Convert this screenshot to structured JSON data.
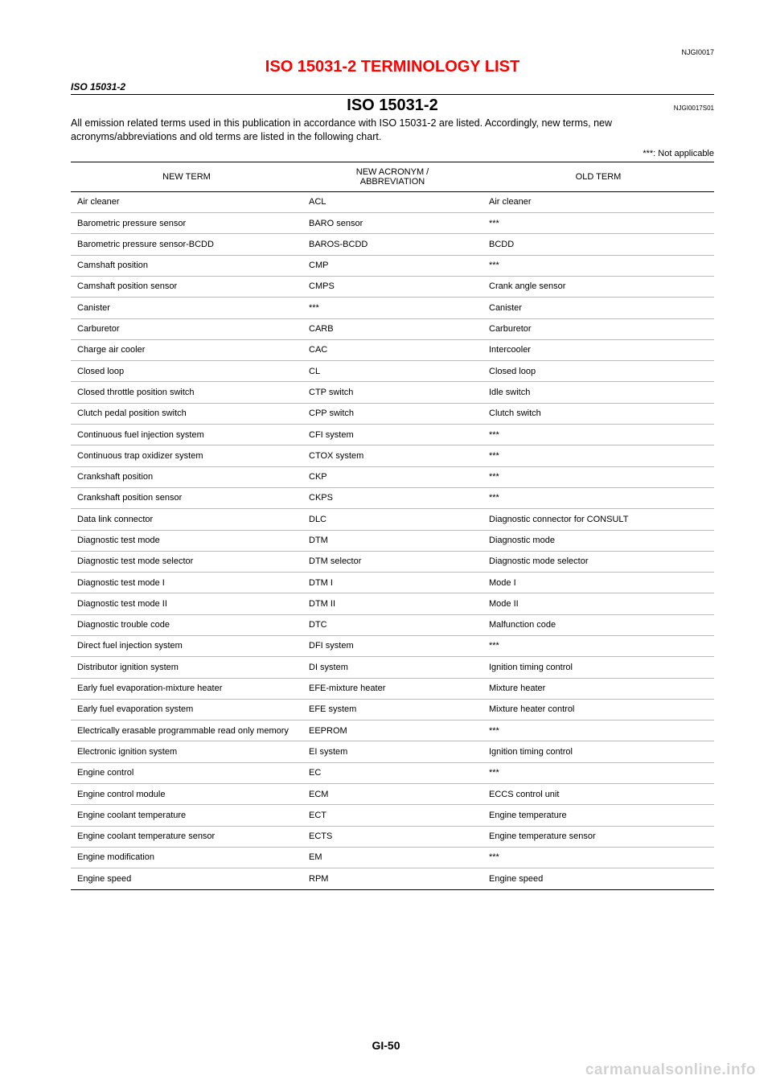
{
  "doc_id": "NJGI0017",
  "title": "ISO 15031-2 TERMINOLOGY LIST",
  "section_label": "ISO 15031-2",
  "sub_title": "ISO 15031-2",
  "sub_ref": "NJGI0017S01",
  "intro": "All emission related terms used in this publication in accordance with ISO 15031-2 are listed. Accordingly, new terms, new acronyms/abbreviations and old terms are listed in the following chart.",
  "note": "***: Not applicable",
  "headers": {
    "c1": "NEW TERM",
    "c2": "NEW ACRONYM /\nABBREVIATION",
    "c3": "OLD TERM"
  },
  "rows": [
    [
      "Air cleaner",
      "ACL",
      "Air cleaner"
    ],
    [
      "Barometric pressure sensor",
      "BARO sensor",
      "***"
    ],
    [
      "Barometric pressure sensor-BCDD",
      "BAROS-BCDD",
      "BCDD"
    ],
    [
      "Camshaft position",
      "CMP",
      "***"
    ],
    [
      "Camshaft position sensor",
      "CMPS",
      "Crank angle sensor"
    ],
    [
      "Canister",
      "***",
      "Canister"
    ],
    [
      "Carburetor",
      "CARB",
      "Carburetor"
    ],
    [
      "Charge air cooler",
      "CAC",
      "Intercooler"
    ],
    [
      "Closed loop",
      "CL",
      "Closed loop"
    ],
    [
      "Closed throttle position switch",
      "CTP switch",
      "Idle switch"
    ],
    [
      "Clutch pedal position switch",
      "CPP switch",
      "Clutch switch"
    ],
    [
      "Continuous fuel injection system",
      "CFI system",
      "***"
    ],
    [
      "Continuous trap oxidizer system",
      "CTOX system",
      "***"
    ],
    [
      "Crankshaft position",
      "CKP",
      "***"
    ],
    [
      "Crankshaft position sensor",
      "CKPS",
      "***"
    ],
    [
      "Data link connector",
      "DLC",
      "Diagnostic connector for CONSULT"
    ],
    [
      "Diagnostic test mode",
      "DTM",
      "Diagnostic mode"
    ],
    [
      "Diagnostic test mode selector",
      "DTM selector",
      "Diagnostic mode selector"
    ],
    [
      "Diagnostic test mode I",
      "DTM I",
      "Mode I"
    ],
    [
      "Diagnostic test mode II",
      "DTM II",
      "Mode II"
    ],
    [
      "Diagnostic trouble code",
      "DTC",
      "Malfunction code"
    ],
    [
      "Direct fuel injection system",
      "DFI system",
      "***"
    ],
    [
      "Distributor ignition system",
      "DI system",
      "Ignition timing control"
    ],
    [
      "Early fuel evaporation-mixture heater",
      "EFE-mixture heater",
      "Mixture heater"
    ],
    [
      "Early fuel evaporation system",
      "EFE system",
      "Mixture heater control"
    ],
    [
      "Electrically erasable programmable read only memory",
      "EEPROM",
      "***"
    ],
    [
      "Electronic ignition system",
      "EI system",
      "Ignition timing control"
    ],
    [
      "Engine control",
      "EC",
      "***"
    ],
    [
      "Engine control module",
      "ECM",
      "ECCS control unit"
    ],
    [
      "Engine coolant temperature",
      "ECT",
      "Engine temperature"
    ],
    [
      "Engine coolant temperature sensor",
      "ECTS",
      "Engine temperature sensor"
    ],
    [
      "Engine modification",
      "EM",
      "***"
    ],
    [
      "Engine speed",
      "RPM",
      "Engine speed"
    ]
  ],
  "page_number": "GI-50",
  "watermark": "carmanualsonline.info"
}
